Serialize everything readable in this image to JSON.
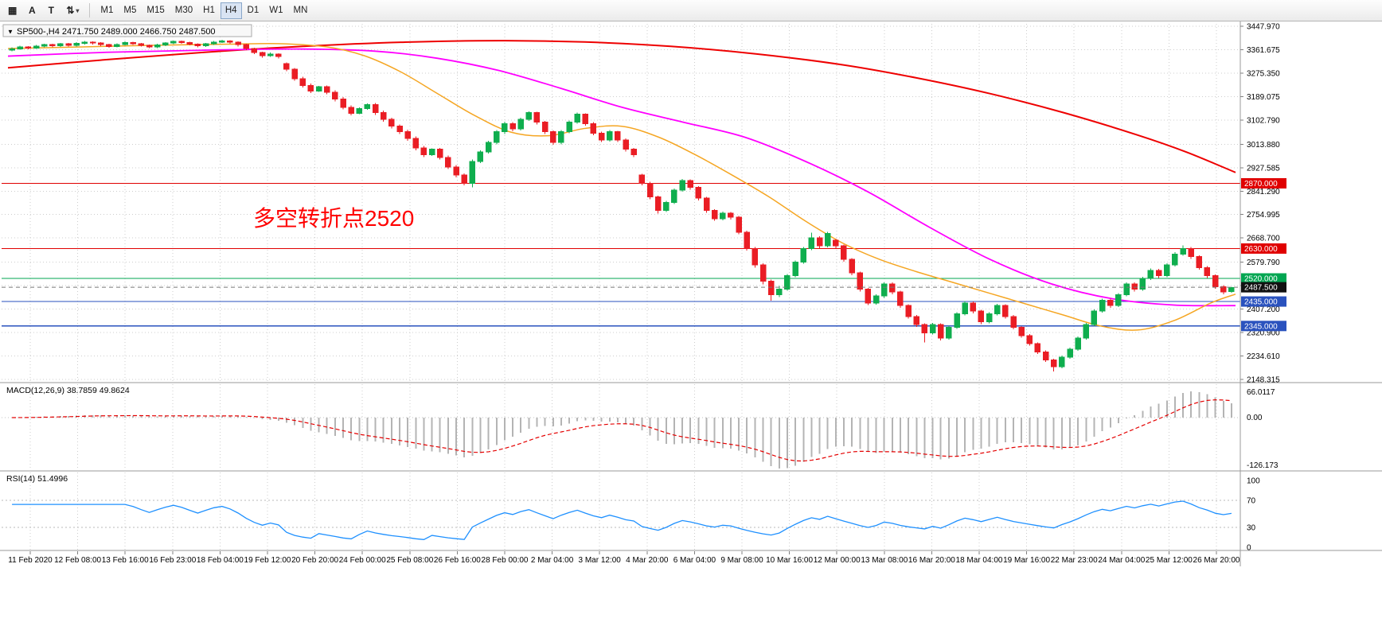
{
  "toolbar": {
    "icon_buttons": [
      {
        "name": "chart-window-icon",
        "glyph": "▦"
      },
      {
        "name": "text-label-icon",
        "glyph": "A"
      },
      {
        "name": "text-tool-icon",
        "glyph": "T"
      },
      {
        "name": "cycle-symbols-icon",
        "glyph": "⇅"
      },
      {
        "name": "dropdown-caret-icon",
        "glyph": "▾"
      }
    ],
    "timeframes": [
      "M1",
      "M5",
      "M15",
      "M30",
      "H1",
      "H4",
      "D1",
      "W1",
      "MN"
    ],
    "active_timeframe": "H4"
  },
  "chart_header": {
    "collapse_icon": "▼",
    "symbol": "SP500-,H4",
    "ohlc": "2471.750 2489.000 2466.750 2487.500"
  },
  "chart_data": {
    "type": "candlestick",
    "title": "SP500-,H4",
    "y_range": [
      2148.315,
      3447.97
    ],
    "y_ticks": [
      "3447.970",
      "3361.675",
      "3275.350",
      "3189.075",
      "3102.790",
      "3013.880",
      "2927.585",
      "2841.290",
      "2754.995",
      "2668.700",
      "2579.790",
      "2493.495",
      "2407.200",
      "2320.900",
      "2234.610",
      "2148.315"
    ],
    "x_labels": [
      "11 Feb 2020",
      "12 Feb 08:00",
      "13 Feb 16:00",
      "16 Feb 23:00",
      "18 Feb 04:00",
      "19 Feb 12:00",
      "20 Feb 20:00",
      "24 Feb 00:00",
      "25 Feb 08:00",
      "26 Feb 16:00",
      "28 Feb 00:00",
      "2 Mar 04:00",
      "3 Mar 12:00",
      "4 Mar 20:00",
      "6 Mar 04:00",
      "9 Mar 08:00",
      "10 Mar 16:00",
      "12 Mar 00:00",
      "13 Mar 08:00",
      "16 Mar 20:00",
      "18 Mar 04:00",
      "19 Mar 16:00",
      "22 Mar 23:00",
      "24 Mar 04:00",
      "25 Mar 12:00",
      "26 Mar 20:00"
    ],
    "candles": [
      [
        3360,
        3370,
        3356,
        3365
      ],
      [
        3365,
        3376,
        3361,
        3372
      ],
      [
        3372,
        3375,
        3363,
        3368
      ],
      [
        3368,
        3379,
        3364,
        3375
      ],
      [
        3375,
        3384,
        3371,
        3380
      ],
      [
        3380,
        3383,
        3371,
        3376
      ],
      [
        3376,
        3387,
        3372,
        3383
      ],
      [
        3383,
        3386,
        3373,
        3378
      ],
      [
        3378,
        3389,
        3374,
        3385
      ],
      [
        3385,
        3394,
        3381,
        3390
      ],
      [
        3390,
        3393,
        3381,
        3386
      ],
      [
        3386,
        3389,
        3375,
        3380
      ],
      [
        3380,
        3383,
        3369,
        3374
      ],
      [
        3374,
        3385,
        3370,
        3381
      ],
      [
        3381,
        3392,
        3377,
        3388
      ],
      [
        3388,
        3391,
        3379,
        3384
      ],
      [
        3384,
        3387,
        3373,
        3378
      ],
      [
        3378,
        3381,
        3367,
        3372
      ],
      [
        3372,
        3383,
        3368,
        3379
      ],
      [
        3379,
        3390,
        3375,
        3386
      ],
      [
        3386,
        3396,
        3382,
        3392
      ],
      [
        3392,
        3395,
        3383,
        3388
      ],
      [
        3388,
        3391,
        3377,
        3382
      ],
      [
        3382,
        3385,
        3371,
        3376
      ],
      [
        3376,
        3387,
        3372,
        3383
      ],
      [
        3383,
        3394,
        3379,
        3390
      ],
      [
        3390,
        3398,
        3386,
        3394
      ],
      [
        3394,
        3397,
        3384,
        3389
      ],
      [
        3389,
        3392,
        3374,
        3380
      ],
      [
        3380,
        3383,
        3360,
        3366
      ],
      [
        3366,
        3369,
        3346,
        3352
      ],
      [
        3352,
        3355,
        3333,
        3340
      ],
      [
        3340,
        3351,
        3336,
        3345
      ],
      [
        3345,
        3348,
        3330,
        3337
      ],
      [
        3310,
        3315,
        3283,
        3290
      ],
      [
        3290,
        3295,
        3248,
        3255
      ],
      [
        3255,
        3262,
        3222,
        3230
      ],
      [
        3230,
        3237,
        3202,
        3210
      ],
      [
        3210,
        3229,
        3206,
        3225
      ],
      [
        3225,
        3230,
        3197,
        3205
      ],
      [
        3205,
        3212,
        3172,
        3180
      ],
      [
        3180,
        3187,
        3142,
        3150
      ],
      [
        3150,
        3157,
        3120,
        3128
      ],
      [
        3128,
        3149,
        3124,
        3145
      ],
      [
        3145,
        3164,
        3141,
        3160
      ],
      [
        3160,
        3165,
        3122,
        3130
      ],
      [
        3130,
        3137,
        3097,
        3105
      ],
      [
        3105,
        3112,
        3072,
        3080
      ],
      [
        3080,
        3087,
        3052,
        3060
      ],
      [
        3060,
        3067,
        3027,
        3035
      ],
      [
        3035,
        3042,
        2992,
        3000
      ],
      [
        3000,
        3007,
        2967,
        2975
      ],
      [
        2975,
        2999,
        2971,
        2995
      ],
      [
        2995,
        3000,
        2957,
        2965
      ],
      [
        2965,
        2972,
        2922,
        2930
      ],
      [
        2930,
        2937,
        2892,
        2900
      ],
      [
        2900,
        2907,
        2862,
        2870
      ],
      [
        2870,
        2958,
        2855,
        2950
      ],
      [
        2950,
        2991,
        2944,
        2985
      ],
      [
        2985,
        3026,
        2979,
        3020
      ],
      [
        3020,
        3066,
        3014,
        3060
      ],
      [
        3060,
        3096,
        3052,
        3090
      ],
      [
        3090,
        3095,
        3062,
        3070
      ],
      [
        3070,
        3111,
        3064,
        3105
      ],
      [
        3105,
        3135,
        3099,
        3130
      ],
      [
        3130,
        3133,
        3087,
        3095
      ],
      [
        3095,
        3100,
        3052,
        3060
      ],
      [
        3060,
        3065,
        3012,
        3020
      ],
      [
        3020,
        3066,
        3014,
        3060
      ],
      [
        3060,
        3101,
        3054,
        3095
      ],
      [
        3095,
        3131,
        3089,
        3125
      ],
      [
        3125,
        3128,
        3082,
        3090
      ],
      [
        3090,
        3095,
        3047,
        3055
      ],
      [
        3055,
        3060,
        3022,
        3030
      ],
      [
        3030,
        3066,
        3024,
        3060
      ],
      [
        3060,
        3063,
        3022,
        3030
      ],
      [
        3030,
        3035,
        2987,
        2995
      ],
      [
        2995,
        3000,
        2967,
        2975
      ],
      [
        2900,
        2905,
        2862,
        2870
      ],
      [
        2870,
        2875,
        2812,
        2820
      ],
      [
        2820,
        2825,
        2758,
        2770
      ],
      [
        2770,
        2806,
        2764,
        2800
      ],
      [
        2800,
        2851,
        2794,
        2845
      ],
      [
        2845,
        2886,
        2839,
        2880
      ],
      [
        2880,
        2884,
        2847,
        2855
      ],
      [
        2855,
        2860,
        2807,
        2815
      ],
      [
        2815,
        2820,
        2762,
        2770
      ],
      [
        2770,
        2775,
        2732,
        2740
      ],
      [
        2740,
        2766,
        2734,
        2760
      ],
      [
        2760,
        2765,
        2737,
        2745
      ],
      [
        2745,
        2750,
        2682,
        2690
      ],
      [
        2690,
        2695,
        2622,
        2630
      ],
      [
        2630,
        2635,
        2560,
        2570
      ],
      [
        2570,
        2575,
        2498,
        2510
      ],
      [
        2510,
        2515,
        2438,
        2460
      ],
      [
        2460,
        2492,
        2452,
        2480
      ],
      [
        2480,
        2536,
        2474,
        2530
      ],
      [
        2530,
        2586,
        2524,
        2580
      ],
      [
        2580,
        2636,
        2574,
        2630
      ],
      [
        2630,
        2688,
        2624,
        2670
      ],
      [
        2670,
        2675,
        2632,
        2640
      ],
      [
        2640,
        2691,
        2634,
        2685
      ],
      [
        2660,
        2665,
        2632,
        2640
      ],
      [
        2640,
        2645,
        2582,
        2590
      ],
      [
        2590,
        2595,
        2532,
        2540
      ],
      [
        2540,
        2545,
        2472,
        2480
      ],
      [
        2480,
        2485,
        2422,
        2430
      ],
      [
        2430,
        2461,
        2424,
        2455
      ],
      [
        2455,
        2506,
        2449,
        2500
      ],
      [
        2500,
        2505,
        2462,
        2470
      ],
      [
        2470,
        2475,
        2412,
        2420
      ],
      [
        2420,
        2425,
        2372,
        2380
      ],
      [
        2380,
        2385,
        2342,
        2350
      ],
      [
        2350,
        2355,
        2285,
        2320
      ],
      [
        2320,
        2356,
        2314,
        2350
      ],
      [
        2350,
        2355,
        2292,
        2300
      ],
      [
        2300,
        2346,
        2294,
        2340
      ],
      [
        2340,
        2396,
        2334,
        2390
      ],
      [
        2390,
        2436,
        2384,
        2430
      ],
      [
        2430,
        2435,
        2392,
        2400
      ],
      [
        2400,
        2405,
        2352,
        2360
      ],
      [
        2360,
        2396,
        2354,
        2390
      ],
      [
        2390,
        2426,
        2384,
        2420
      ],
      [
        2420,
        2425,
        2372,
        2380
      ],
      [
        2380,
        2385,
        2332,
        2340
      ],
      [
        2340,
        2345,
        2302,
        2310
      ],
      [
        2310,
        2315,
        2272,
        2280
      ],
      [
        2280,
        2285,
        2242,
        2250
      ],
      [
        2250,
        2255,
        2212,
        2220
      ],
      [
        2220,
        2225,
        2178,
        2195
      ],
      [
        2195,
        2236,
        2189,
        2230
      ],
      [
        2230,
        2266,
        2224,
        2260
      ],
      [
        2260,
        2306,
        2254,
        2300
      ],
      [
        2300,
        2356,
        2294,
        2350
      ],
      [
        2350,
        2406,
        2344,
        2400
      ],
      [
        2400,
        2446,
        2394,
        2440
      ],
      [
        2440,
        2445,
        2412,
        2420
      ],
      [
        2420,
        2466,
        2414,
        2460
      ],
      [
        2460,
        2506,
        2454,
        2500
      ],
      [
        2500,
        2505,
        2472,
        2480
      ],
      [
        2480,
        2526,
        2474,
        2520
      ],
      [
        2520,
        2556,
        2514,
        2550
      ],
      [
        2550,
        2555,
        2522,
        2530
      ],
      [
        2530,
        2576,
        2524,
        2570
      ],
      [
        2570,
        2616,
        2564,
        2610
      ],
      [
        2610,
        2641,
        2604,
        2630
      ],
      [
        2630,
        2635,
        2592,
        2600
      ],
      [
        2600,
        2605,
        2552,
        2560
      ],
      [
        2560,
        2565,
        2522,
        2530
      ],
      [
        2530,
        2535,
        2482,
        2490
      ],
      [
        2490,
        2495,
        2462,
        2470
      ],
      [
        2472,
        2489,
        2467,
        2487
      ]
    ],
    "moving_averages": [
      {
        "name": "ma-long",
        "color": "#ee0000",
        "anchors": [
          [
            0,
            3295
          ],
          [
            0.08,
            3325
          ],
          [
            0.16,
            3352
          ],
          [
            0.24,
            3374
          ],
          [
            0.32,
            3389
          ],
          [
            0.4,
            3395
          ],
          [
            0.47,
            3390
          ],
          [
            0.54,
            3374
          ],
          [
            0.61,
            3346
          ],
          [
            0.68,
            3306
          ],
          [
            0.74,
            3258
          ],
          [
            0.8,
            3200
          ],
          [
            0.86,
            3130
          ],
          [
            0.92,
            3048
          ],
          [
            0.96,
            2985
          ],
          [
            1,
            2910
          ]
        ]
      },
      {
        "name": "ma-mid",
        "color": "#ff00ff",
        "anchors": [
          [
            0,
            3338
          ],
          [
            0.08,
            3352
          ],
          [
            0.16,
            3360
          ],
          [
            0.24,
            3364
          ],
          [
            0.3,
            3356
          ],
          [
            0.35,
            3330
          ],
          [
            0.4,
            3285
          ],
          [
            0.45,
            3220
          ],
          [
            0.5,
            3150
          ],
          [
            0.55,
            3095
          ],
          [
            0.6,
            3040
          ],
          [
            0.65,
            2950
          ],
          [
            0.7,
            2840
          ],
          [
            0.75,
            2710
          ],
          [
            0.8,
            2590
          ],
          [
            0.85,
            2500
          ],
          [
            0.9,
            2445
          ],
          [
            0.95,
            2422
          ],
          [
            1,
            2420
          ]
        ]
      },
      {
        "name": "ma-fast",
        "color": "#f5a623",
        "anchors": [
          [
            0,
            3366
          ],
          [
            0.06,
            3372
          ],
          [
            0.12,
            3378
          ],
          [
            0.18,
            3382
          ],
          [
            0.22,
            3384
          ],
          [
            0.26,
            3372
          ],
          [
            0.29,
            3340
          ],
          [
            0.32,
            3280
          ],
          [
            0.35,
            3200
          ],
          [
            0.38,
            3120
          ],
          [
            0.41,
            3058
          ],
          [
            0.44,
            3045
          ],
          [
            0.47,
            3072
          ],
          [
            0.5,
            3080
          ],
          [
            0.53,
            3040
          ],
          [
            0.56,
            2975
          ],
          [
            0.59,
            2900
          ],
          [
            0.62,
            2820
          ],
          [
            0.65,
            2730
          ],
          [
            0.68,
            2650
          ],
          [
            0.71,
            2590
          ],
          [
            0.74,
            2545
          ],
          [
            0.77,
            2505
          ],
          [
            0.8,
            2465
          ],
          [
            0.83,
            2425
          ],
          [
            0.86,
            2385
          ],
          [
            0.89,
            2345
          ],
          [
            0.92,
            2330
          ],
          [
            0.95,
            2365
          ],
          [
            0.98,
            2430
          ],
          [
            1,
            2462
          ]
        ]
      }
    ],
    "horizontal_lines": [
      {
        "text": "2870.000",
        "price": 2870,
        "color": "#e00000"
      },
      {
        "text": "2630.000",
        "price": 2630,
        "color": "#e00000"
      },
      {
        "text": "2520.000",
        "price": 2520,
        "color": "#00a651"
      },
      {
        "text": "2435.000",
        "price": 2435,
        "color": "#2a52be"
      },
      {
        "text": "2345.000",
        "price": 2345,
        "color": "#2a52be"
      }
    ],
    "current_price": {
      "value": 2487.5,
      "label": "2487.500",
      "label_bg": "#111111",
      "line_color": "#777777",
      "line_style": "dashed"
    },
    "annotation": {
      "text": "多空转折点2520",
      "color": "#ff0000"
    },
    "indicators": [
      {
        "type": "MACD",
        "label": "MACD(12,26,9) 38.7859 49.8624",
        "fast": 12,
        "slow": 26,
        "signal": 9,
        "current_macd": 38.7859,
        "current_signal": 49.8624,
        "axis_labels": [
          "66.0117",
          "0.00",
          "-126.173"
        ],
        "axis_values": [
          66.0117,
          0,
          -126.173
        ],
        "histogram_color": "#b4b4b4",
        "signal_color": "#e40000"
      },
      {
        "type": "RSI",
        "label": "RSI(14) 51.4996",
        "period": 14,
        "current": 51.4996,
        "axis_labels": [
          "100",
          "70",
          "30",
          "0"
        ],
        "axis_values": [
          100,
          70,
          30,
          0
        ],
        "levels": [
          70,
          30
        ],
        "line_color": "#1e90ff"
      }
    ],
    "colors": {
      "up": "#0fae4e",
      "down": "#ea1d24",
      "grid": "#cdcdcd",
      "background": "#ffffff"
    }
  }
}
